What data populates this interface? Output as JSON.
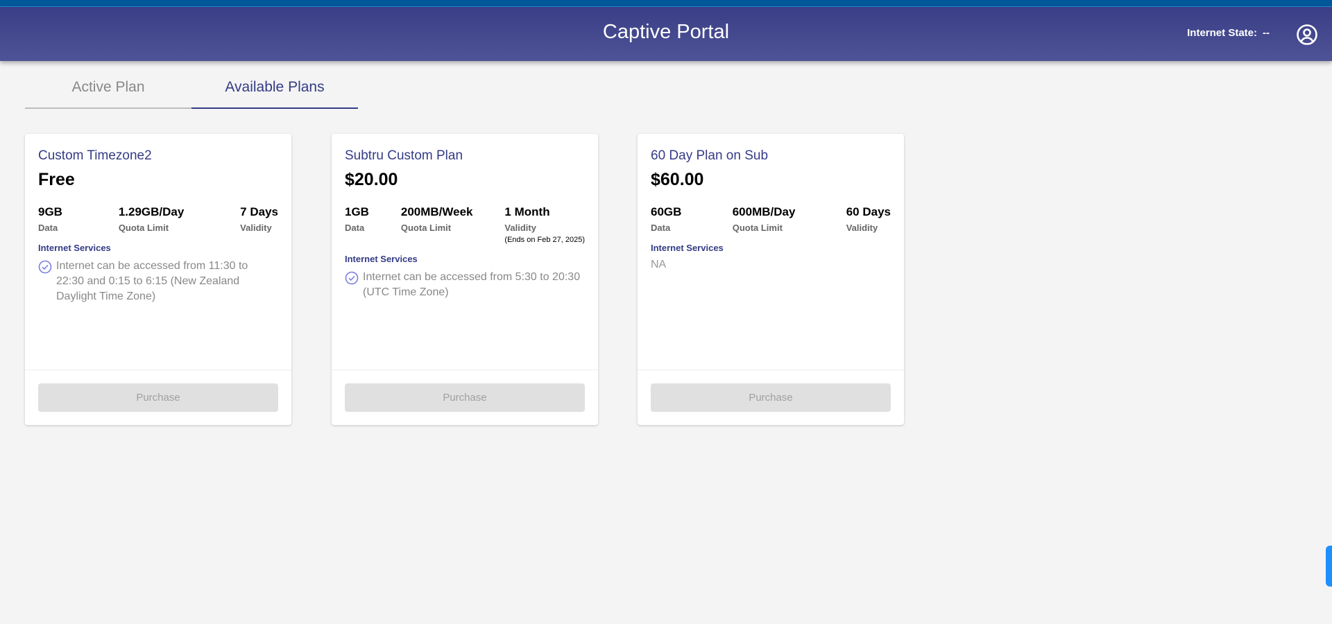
{
  "header": {
    "title": "Captive Portal",
    "internet_state_label": "Internet State:",
    "internet_state_value": "--"
  },
  "tabs": [
    {
      "label": "Active Plan",
      "active": false
    },
    {
      "label": "Available Plans",
      "active": true
    }
  ],
  "plans": [
    {
      "name": "Custom Timezone2",
      "price": "Free",
      "data": "9GB",
      "data_label": "Data",
      "quota": "1.29GB/Day",
      "quota_label": "Quota Limit",
      "validity": "7 Days",
      "validity_label": "Validity",
      "ends": "",
      "services_label": "Internet Services",
      "services": [
        "Internet can be accessed from 11:30 to 22:30 and 0:15 to 6:15 (New Zealand Daylight Time Zone)"
      ],
      "button": "Purchase"
    },
    {
      "name": "Subtru Custom Plan",
      "price": "$20.00",
      "data": "1GB",
      "data_label": "Data",
      "quota": "200MB/Week",
      "quota_label": "Quota Limit",
      "validity": "1 Month",
      "validity_label": "Validity",
      "ends": "(Ends on Feb 27, 2025)",
      "services_label": "Internet Services",
      "services": [
        "Internet can be accessed from 5:30 to 20:30 (UTC Time Zone)"
      ],
      "button": "Purchase"
    },
    {
      "name": "60 Day Plan on Sub",
      "price": "$60.00",
      "data": "60GB",
      "data_label": "Data",
      "quota": "600MB/Day",
      "quota_label": "Quota Limit",
      "validity": "60 Days",
      "validity_label": "Validity",
      "ends": "",
      "services_label": "Internet Services",
      "services_none": "NA",
      "services": [],
      "button": "Purchase"
    }
  ],
  "colors": {
    "header": "#3f4489",
    "accent": "#343b86",
    "side_tab": "#1e8fff"
  }
}
